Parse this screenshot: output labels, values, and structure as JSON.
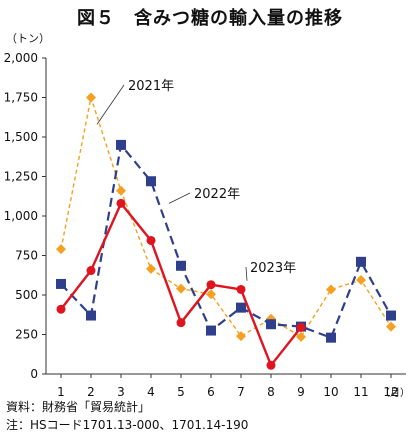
{
  "chart_data": {
    "type": "line",
    "title": "図５　含みつ糖の輸入量の推移",
    "ylabel": "（トン）",
    "xlabel_unit": "（月）",
    "ylim": [
      0,
      2000
    ],
    "yticks": [
      0,
      250,
      500,
      750,
      1000,
      1250,
      1500,
      1750,
      2000
    ],
    "ytick_labels": [
      "0",
      "250",
      "500",
      "750",
      "1,000",
      "1,250",
      "1,500",
      "1,750",
      "2,000"
    ],
    "x": [
      1,
      2,
      3,
      4,
      5,
      6,
      7,
      8,
      9,
      10,
      11,
      12
    ],
    "xtick_labels": [
      "1",
      "2",
      "3",
      "4",
      "5",
      "6",
      "7",
      "8",
      "9",
      "10",
      "11",
      "12"
    ],
    "grid": false,
    "series": [
      {
        "name": "2021年",
        "color": "#f5a020",
        "line_style": "dotted",
        "marker": "diamond",
        "values": [
          790,
          1750,
          1160,
          665,
          540,
          505,
          240,
          350,
          235,
          535,
          595,
          300
        ]
      },
      {
        "name": "2022年",
        "color": "#2f3f8c",
        "line_style": "dashed",
        "marker": "square",
        "values": [
          570,
          370,
          1450,
          1220,
          685,
          275,
          420,
          315,
          300,
          230,
          710,
          370
        ]
      },
      {
        "name": "2023年",
        "color": "#e0141e",
        "line_style": "solid",
        "marker": "circle",
        "values": [
          410,
          655,
          1080,
          845,
          325,
          565,
          535,
          55,
          295,
          null,
          null,
          null
        ]
      }
    ]
  },
  "notes": {
    "source": "資料：財務省「貿易統計」",
    "note": "注：HSコード1701.13-000、1701.14-190"
  }
}
